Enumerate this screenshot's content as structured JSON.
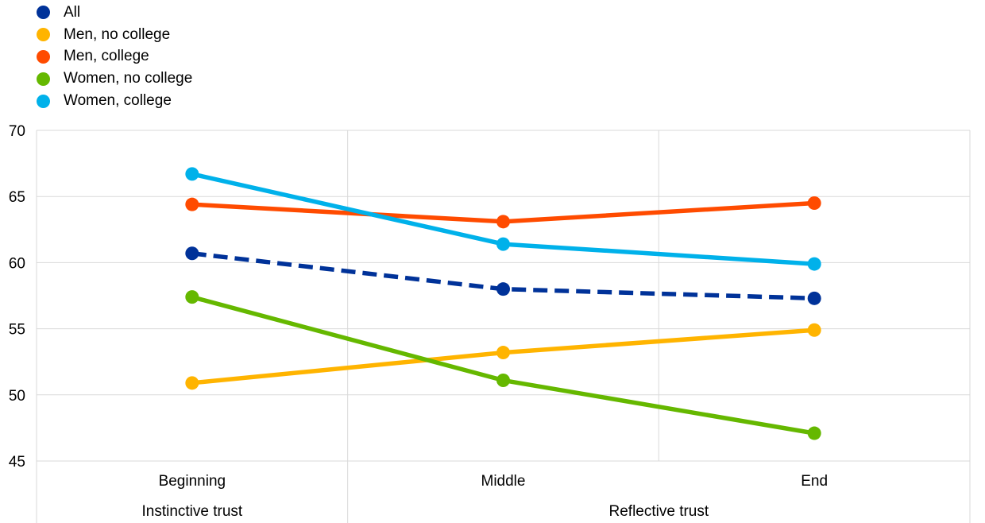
{
  "chart_data": {
    "type": "line",
    "title": "",
    "xlabel": "",
    "ylabel": "",
    "categories": [
      "Beginning",
      "Middle",
      "End"
    ],
    "groups": [
      {
        "label": "Instinctive trust",
        "categories": [
          "Beginning"
        ]
      },
      {
        "label": "Reflective trust",
        "categories": [
          "Middle",
          "End"
        ]
      }
    ],
    "ylim": [
      45,
      70
    ],
    "yticks": [
      45,
      50,
      55,
      60,
      65,
      70
    ],
    "grid": true,
    "legend_position": "top-left",
    "series": [
      {
        "name": "All",
        "color": "#003299",
        "dashed": true,
        "values": [
          60.7,
          58.0,
          57.3
        ]
      },
      {
        "name": "Men, no college",
        "color": "#FFB400",
        "dashed": false,
        "values": [
          50.9,
          53.2,
          54.9
        ]
      },
      {
        "name": "Men, college",
        "color": "#FF4B00",
        "dashed": false,
        "values": [
          64.4,
          63.1,
          64.5
        ]
      },
      {
        "name": "Women, no college",
        "color": "#65B800",
        "dashed": false,
        "values": [
          57.4,
          51.1,
          47.1
        ]
      },
      {
        "name": "Women, college",
        "color": "#00B1EA",
        "dashed": false,
        "values": [
          66.7,
          61.4,
          59.9
        ]
      }
    ]
  }
}
